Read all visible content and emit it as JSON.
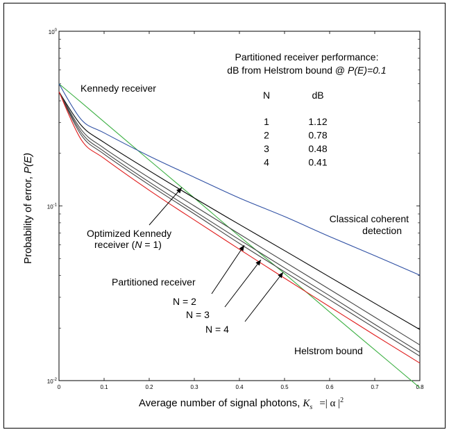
{
  "chart_data": {
    "type": "line",
    "title": "",
    "xlabel_text": "Average number of signal photons,",
    "xlabel_symbol": "K",
    "xlabel_symbol_sub": "s",
    "xlabel_eq": "=| α |",
    "xlabel_sup": "2",
    "ylabel_prefix": "Probability of error,",
    "ylabel_p": "P(",
    "ylabel_e": "E",
    "ylabel_close": ")",
    "xlim": [
      0,
      0.8
    ],
    "ylim": [
      0.01,
      1
    ],
    "yscale": "log",
    "x_ticks": [
      "0",
      "0.1",
      "0.2",
      "0.3",
      "0.4",
      "0.5",
      "0.6",
      "0.7",
      "0.8"
    ],
    "y_ticks": [
      {
        "base": "10",
        "exp": "0"
      },
      {
        "base": "10",
        "exp": "-1"
      },
      {
        "base": "10",
        "exp": "-2"
      }
    ],
    "x": [
      0,
      0.05,
      0.1,
      0.2,
      0.3,
      0.4,
      0.5,
      0.6,
      0.7,
      0.8
    ],
    "series": [
      {
        "key": "kennedy",
        "color": "#3cb043",
        "values": [
          0.5,
          0.39,
          0.303,
          0.183,
          0.111,
          0.067,
          0.041,
          0.0247,
          0.015,
          0.0091
        ]
      },
      {
        "key": "classical",
        "color": "#2e4fa3",
        "values": [
          0.5,
          0.311,
          0.262,
          0.193,
          0.146,
          0.111,
          0.0869,
          0.0668,
          0.0519,
          0.0401
        ]
      },
      {
        "key": "optimized",
        "color": "#000000",
        "values": [
          0.45,
          0.288,
          0.231,
          0.159,
          0.111,
          0.0783,
          0.0555,
          0.0392,
          0.0277,
          0.0196
        ]
      },
      {
        "key": "n2",
        "color": "#444444",
        "values": [
          0.45,
          0.272,
          0.214,
          0.145,
          0.1,
          0.069,
          0.0479,
          0.0333,
          0.0231,
          0.016
        ]
      },
      {
        "key": "n3",
        "color": "#444444",
        "values": [
          0.45,
          0.262,
          0.205,
          0.137,
          0.0935,
          0.064,
          0.0442,
          0.0306,
          0.021,
          0.0145
        ]
      },
      {
        "key": "n4",
        "color": "#444444",
        "values": [
          0.45,
          0.253,
          0.198,
          0.132,
          0.09,
          0.061,
          0.042,
          0.029,
          0.02,
          0.0138
        ]
      },
      {
        "key": "helstrom",
        "color": "#e01b1b",
        "values": [
          0.45,
          0.238,
          0.187,
          0.123,
          0.0831,
          0.0565,
          0.0386,
          0.0265,
          0.0182,
          0.0126
        ]
      }
    ],
    "annotations": {
      "kennedy": "Kennedy receiver",
      "classical_1": "Classical coherent",
      "classical_2": "detection",
      "optimized_1": "Optimized Kennedy",
      "optimized_2_pre": "receiver (",
      "optimized_2_n": "N",
      "optimized_2_post": " = 1)",
      "partitioned": "Partitioned receiver",
      "n2": "N = 2",
      "n3": "N = 3",
      "n4": "N = 4",
      "helstrom": "Helstrom bound"
    },
    "table": {
      "title_1": "Partitioned receiver performance:",
      "title_2_pre": "dB from Helstrom bound @ ",
      "title_2_p": "P(",
      "title_2_e": "E",
      "title_2_post": ")=0.1",
      "col_n": "N",
      "col_db": "dB",
      "rows": [
        {
          "n": "1",
          "db": "1.12"
        },
        {
          "n": "2",
          "db": "0.78"
        },
        {
          "n": "3",
          "db": "0.48"
        },
        {
          "n": "4",
          "db": "0.41"
        }
      ]
    },
    "colors": {
      "kennedy_label": "#3cb043",
      "classical_label": "#2e4fa3",
      "helstrom_label": "#e01b1b"
    }
  }
}
